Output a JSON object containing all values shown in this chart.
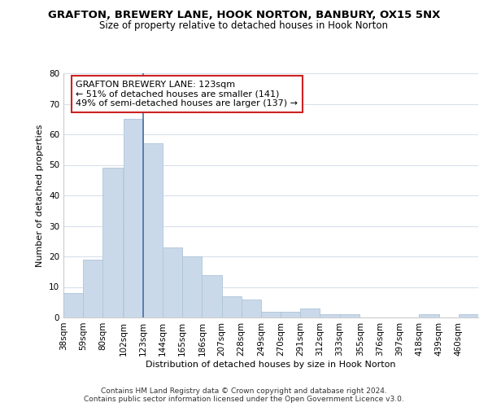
{
  "title": "GRAFTON, BREWERY LANE, HOOK NORTON, BANBURY, OX15 5NX",
  "subtitle": "Size of property relative to detached houses in Hook Norton",
  "xlabel": "Distribution of detached houses by size in Hook Norton",
  "ylabel": "Number of detached properties",
  "footer_line1": "Contains HM Land Registry data © Crown copyright and database right 2024.",
  "footer_line2": "Contains public sector information licensed under the Open Government Licence v3.0.",
  "bins": [
    38,
    59,
    80,
    102,
    123,
    144,
    165,
    186,
    207,
    228,
    249,
    270,
    291,
    312,
    333,
    355,
    376,
    397,
    418,
    439,
    460
  ],
  "counts": [
    8,
    19,
    49,
    65,
    57,
    23,
    20,
    14,
    7,
    6,
    2,
    2,
    3,
    1,
    1,
    0,
    0,
    0,
    1,
    0,
    1
  ],
  "bin_width": 21,
  "property_size": 123,
  "annotation_title": "GRAFTON BREWERY LANE: 123sqm",
  "annotation_line2": "← 51% of detached houses are smaller (141)",
  "annotation_line3": "49% of semi-detached houses are larger (137) →",
  "bar_color": "#cad9ea",
  "bar_edge_color": "#aec4d8",
  "line_color": "#4a6fa5",
  "annotation_box_facecolor": "#ffffff",
  "annotation_box_edgecolor": "#cc2222",
  "background_color": "#ffffff",
  "grid_color": "#d8e0ec",
  "ylim": [
    0,
    80
  ],
  "yticks": [
    0,
    10,
    20,
    30,
    40,
    50,
    60,
    70,
    80
  ],
  "title_fontsize": 9.5,
  "subtitle_fontsize": 8.5,
  "axis_label_fontsize": 8,
  "tick_fontsize": 7.5,
  "footer_fontsize": 6.5,
  "annotation_fontsize": 8
}
